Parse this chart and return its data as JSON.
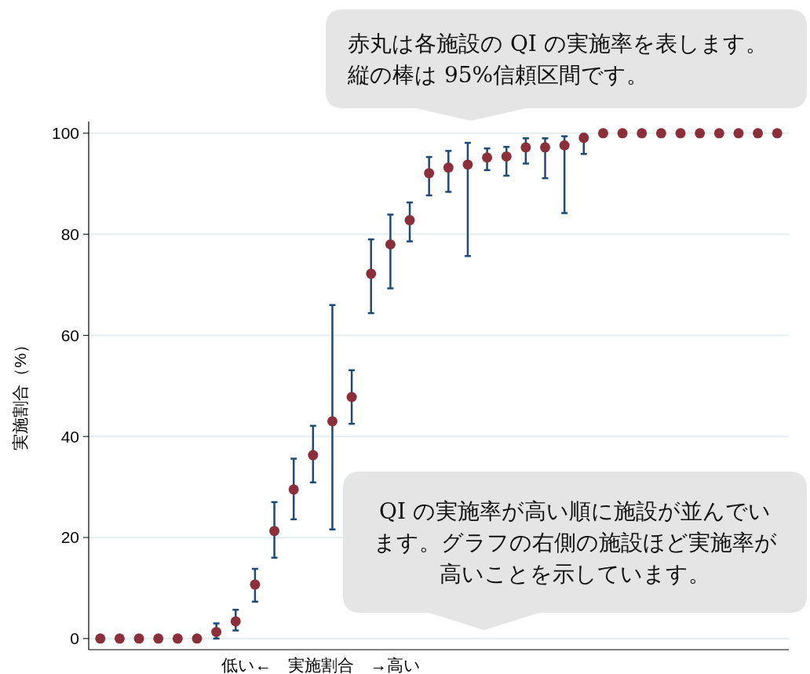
{
  "chart_data": {
    "type": "scatter",
    "xlabel": "低い←　実施割合　→高い",
    "ylabel": "実施割合（%）",
    "annotations": [
      "赤丸は各施設の QI の実施率を表します。縦の棒は 95%信頼区間です。",
      "QI の実施率が高い順に施設が並んでいます。グラフの右側の施設ほど実施率が高いことを示しています。"
    ],
    "categories": [
      null,
      null,
      null,
      null,
      null,
      null,
      null,
      null,
      null,
      null,
      null,
      null,
      null,
      null,
      null,
      null,
      null,
      null,
      null,
      null,
      null,
      null,
      null,
      null,
      null,
      null,
      null,
      null,
      null,
      null,
      null,
      null,
      null,
      null,
      null,
      null
    ],
    "series": [
      {
        "color": "#8b2f3b",
        "values": [
          0,
          0,
          0,
          0,
          0,
          0,
          1.3,
          3.4,
          10.7,
          21.3,
          29.5,
          36.3,
          43.0,
          47.8,
          72.2,
          78.0,
          82.8,
          92.1,
          93.2,
          93.8,
          95.2,
          95.4,
          97.2,
          97.2,
          97.6,
          99.1,
          100,
          100,
          100,
          100,
          100,
          100,
          100,
          100,
          100,
          100
        ],
        "errors": [
          null,
          null,
          null,
          null,
          null,
          null,
          [
            0,
            3
          ],
          [
            1.6,
            5.7
          ],
          [
            7.3,
            13.8
          ],
          [
            16.0,
            27.0
          ],
          [
            23.6,
            35.6
          ],
          [
            30.9,
            42.1
          ],
          [
            21.6,
            66.0
          ],
          [
            42.5,
            53.1
          ],
          [
            64.4,
            79.0
          ],
          [
            69.3,
            83.9
          ],
          [
            78.6,
            86.3
          ],
          [
            87.7,
            95.3
          ],
          [
            88.4,
            96.5
          ],
          [
            75.7,
            98.1
          ],
          [
            92.7,
            97.0
          ],
          [
            91.6,
            97.3
          ],
          [
            94.0,
            99.0
          ],
          [
            91.1,
            99.0
          ],
          [
            84.2,
            99.4
          ],
          [
            95.9,
            99.8
          ],
          null,
          null,
          null,
          null,
          null,
          null,
          null,
          null,
          null,
          null
        ]
      }
    ],
    "ylim": [
      -2.2,
      102.3
    ],
    "yticks": [
      0,
      20,
      40,
      60,
      80,
      100
    ],
    "grid": "y",
    "marker": "circle",
    "tick_labels": "y"
  }
}
